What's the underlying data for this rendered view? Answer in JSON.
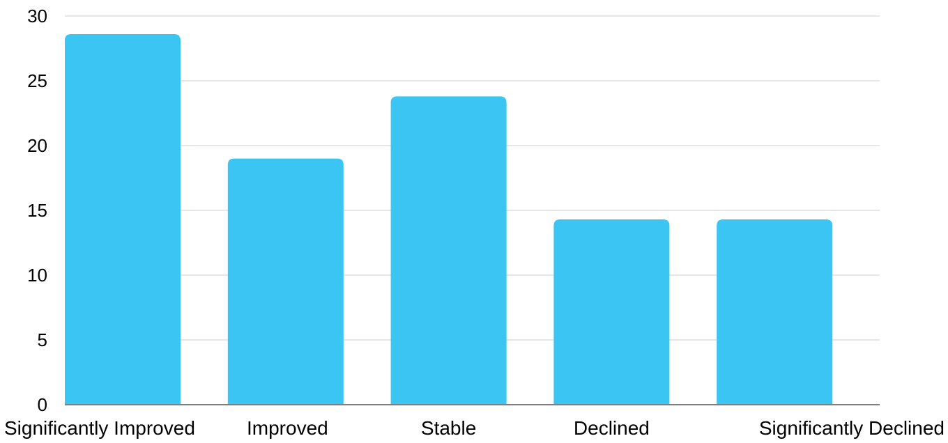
{
  "chart_data": {
    "type": "bar",
    "categories": [
      "Significantly Improved",
      "Improved",
      "Stable",
      "Declined",
      "Significantly Declined"
    ],
    "values": [
      28.6,
      19.0,
      23.8,
      14.3,
      14.3
    ],
    "title": "",
    "xlabel": "",
    "ylabel": "",
    "ylim": [
      0,
      30
    ],
    "yticks": [
      0,
      5,
      10,
      15,
      20,
      25,
      30
    ],
    "grid": true,
    "legend": "none",
    "bar_color": "#3BC5F2",
    "grid_color": "#cccccc",
    "axis_color": "#7f7f7f"
  }
}
